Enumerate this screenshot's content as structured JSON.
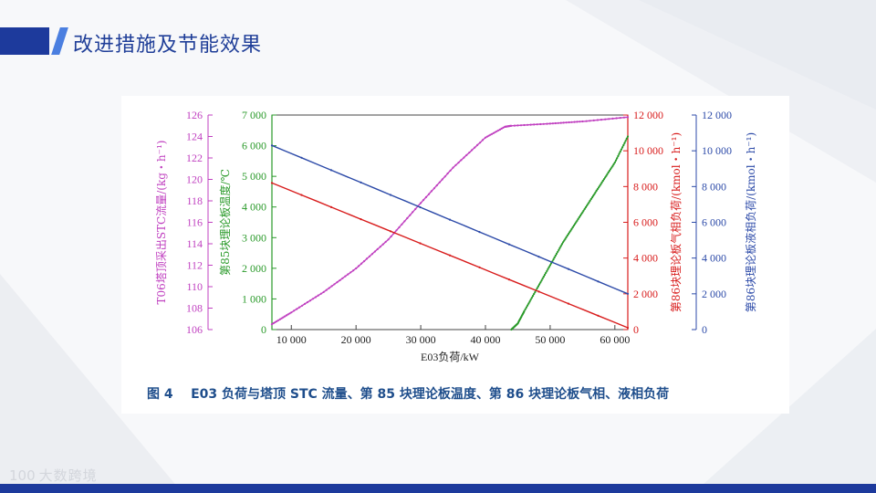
{
  "slide": {
    "title": "改进措施及节能效果",
    "brand_logo": "100",
    "brand_name": "大数跨境"
  },
  "colors": {
    "accent": "#1d3a9c",
    "magenta": "#c040c0",
    "green": "#2a9a2a",
    "red": "#d81c1c",
    "blue": "#2c4aa8"
  },
  "chart_data": {
    "type": "line",
    "caption": "图 4    E03 负荷与塔顶 STC 流量、第 85 块理论板温度、第 86 块理论板气相、液相负荷",
    "xlabel": "E03负荷/kW",
    "xlim": [
      7000,
      62000
    ],
    "xticks": [
      10000,
      20000,
      30000,
      40000,
      50000,
      60000
    ],
    "xtick_labels": [
      "10 000",
      "20 000",
      "30 000",
      "40 000",
      "50 000",
      "60 000"
    ],
    "grid": false,
    "axes": [
      {
        "id": "stc",
        "label": "T06塔顶采出STC流量/(kg・h⁻¹)",
        "color": "#c040c0",
        "ylim": [
          106,
          126
        ],
        "ticks": [
          106,
          108,
          110,
          112,
          114,
          116,
          118,
          120,
          122,
          124,
          126
        ],
        "tick_labels": [
          "106",
          "108",
          "110",
          "112",
          "114",
          "116",
          "118",
          "120",
          "122",
          "124",
          "126"
        ]
      },
      {
        "id": "temp",
        "label": "第85块理论板温度/℃",
        "color": "#2a9a2a",
        "ylim": [
          0,
          7000
        ],
        "ticks": [
          0,
          1000,
          2000,
          3000,
          4000,
          5000,
          6000,
          7000
        ],
        "tick_labels": [
          "0",
          "1 000",
          "2 000",
          "3 000",
          "4 000",
          "5 000",
          "6 000",
          "7 000"
        ]
      },
      {
        "id": "vapor",
        "label": "第86块理论板气相负荷/(kmol・h⁻¹)",
        "color": "#d81c1c",
        "ylim": [
          0,
          12000
        ],
        "ticks": [
          0,
          2000,
          4000,
          6000,
          8000,
          10000,
          12000
        ],
        "tick_labels": [
          "0",
          "2 000",
          "4 000",
          "6 000",
          "8 000",
          "10 000",
          "12 000"
        ]
      },
      {
        "id": "liquid",
        "label": "第86块理论板液相负荷/(kmol・h⁻¹)",
        "color": "#2c4aa8",
        "ylim": [
          0,
          12000
        ],
        "ticks": [
          0,
          2000,
          4000,
          6000,
          8000,
          10000,
          12000
        ],
        "tick_labels": [
          "0",
          "2 000",
          "4 000",
          "6 000",
          "8 000",
          "10 000",
          "12 000"
        ]
      }
    ],
    "series": [
      {
        "axis": "stc",
        "color": "#c040c0",
        "x": [
          7000,
          10000,
          15000,
          20000,
          25000,
          30000,
          35000,
          40000,
          43000,
          44000,
          50000,
          55000,
          62000
        ],
        "y": [
          106.5,
          107.6,
          109.5,
          111.7,
          114.4,
          117.8,
          121.1,
          123.9,
          124.9,
          125.0,
          125.2,
          125.4,
          125.8
        ]
      },
      {
        "axis": "temp",
        "color": "#2a9a2a",
        "x": [
          44000,
          45000,
          46000,
          48000,
          50000,
          52000,
          54000,
          56000,
          58000,
          60000,
          62000
        ],
        "y": [
          0,
          200,
          600,
          1350,
          2100,
          2850,
          3500,
          4150,
          4800,
          5450,
          6300
        ]
      },
      {
        "axis": "vapor",
        "color": "#d81c1c",
        "x": [
          7000,
          62000
        ],
        "y": [
          8200,
          100
        ]
      },
      {
        "axis": "liquid",
        "color": "#2c4aa8",
        "x": [
          7000,
          62000
        ],
        "y": [
          10300,
          2000
        ]
      }
    ]
  }
}
